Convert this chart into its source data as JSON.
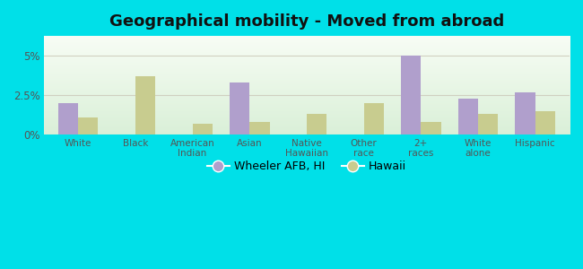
{
  "title": "Geographical mobility - Moved from abroad",
  "categories": [
    "White",
    "Black",
    "American\nIndian",
    "Asian",
    "Native\nHawaiian",
    "Other\nrace",
    "2+\nraces",
    "White\nalone",
    "Hispanic"
  ],
  "wheeler_values": [
    2.0,
    0.0,
    0.0,
    3.3,
    0.0,
    0.0,
    5.0,
    2.3,
    2.7
  ],
  "hawaii_values": [
    1.1,
    3.7,
    0.7,
    0.8,
    1.3,
    2.0,
    0.8,
    1.3,
    1.5
  ],
  "wheeler_color": "#b09fcc",
  "hawaii_color": "#c8cc8f",
  "outer_background": "#00e0e8",
  "ylim": [
    0,
    6.25
  ],
  "yticks": [
    0.0,
    2.5,
    5.0
  ],
  "ytick_labels": [
    "0%",
    "2.5%",
    "5%"
  ],
  "legend_wheeler": "Wheeler AFB, HI",
  "legend_hawaii": "Hawaii",
  "bar_width": 0.35
}
